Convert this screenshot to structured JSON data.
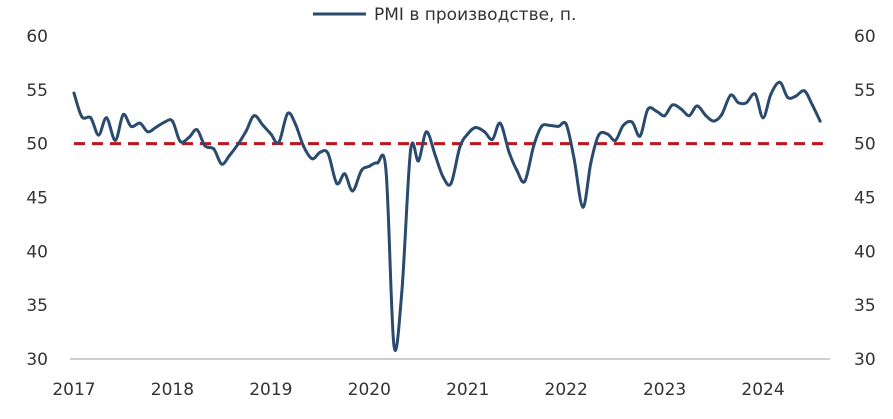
{
  "chart_data": {
    "type": "line",
    "legend": {
      "placement": "top-center",
      "label": "PMI в производстве, п."
    },
    "x_ticks": [
      "2017",
      "2018",
      "2019",
      "2020",
      "2021",
      "2022",
      "2023",
      "2024"
    ],
    "y_ticks": [
      "60",
      "55",
      "50",
      "45",
      "40",
      "35",
      "30"
    ],
    "ylim": [
      30,
      60
    ],
    "xlim": [
      2017.0,
      2024.67
    ],
    "grid": false,
    "colors": {
      "series": "#2b4b6e",
      "reference": "#c0141c",
      "axis": "#bfbfbf",
      "text": "#333333"
    },
    "reference_line": {
      "value": 50,
      "style": "dashed"
    },
    "series": [
      {
        "name": "PMI в производстве, п.",
        "x": [
          2017.0,
          2017.08,
          2017.17,
          2017.25,
          2017.33,
          2017.42,
          2017.5,
          2017.58,
          2017.67,
          2017.75,
          2017.83,
          2017.92,
          2018.0,
          2018.08,
          2018.17,
          2018.25,
          2018.33,
          2018.42,
          2018.5,
          2018.58,
          2018.67,
          2018.75,
          2018.83,
          2018.92,
          2019.0,
          2019.08,
          2019.17,
          2019.25,
          2019.33,
          2019.42,
          2019.5,
          2019.58,
          2019.67,
          2019.75,
          2019.83,
          2019.92,
          2020.0,
          2020.08,
          2020.17,
          2020.25,
          2020.33,
          2020.42,
          2020.5,
          2020.58,
          2020.67,
          2020.75,
          2020.83,
          2020.92,
          2021.0,
          2021.08,
          2021.17,
          2021.25,
          2021.33,
          2021.42,
          2021.5,
          2021.58,
          2021.67,
          2021.75,
          2021.83,
          2021.92,
          2022.0,
          2022.08,
          2022.17,
          2022.25,
          2022.33,
          2022.42,
          2022.5,
          2022.58,
          2022.67,
          2022.75,
          2022.83,
          2022.92,
          2023.0,
          2023.08,
          2023.17,
          2023.25,
          2023.33,
          2023.42,
          2023.5,
          2023.58,
          2023.67,
          2023.75,
          2023.83,
          2023.92,
          2024.0,
          2024.08,
          2024.17,
          2024.25,
          2024.33,
          2024.42,
          2024.5,
          2024.58
        ],
        "values": [
          54.7,
          52.5,
          52.4,
          50.8,
          52.4,
          50.3,
          52.7,
          51.6,
          51.9,
          51.1,
          51.5,
          52.0,
          52.1,
          50.2,
          50.6,
          51.3,
          49.8,
          49.5,
          48.1,
          48.9,
          50.0,
          51.2,
          52.6,
          51.7,
          50.9,
          50.1,
          52.8,
          51.8,
          49.8,
          48.6,
          49.2,
          49.1,
          46.3,
          47.2,
          45.6,
          47.5,
          47.9,
          48.2,
          47.5,
          31.3,
          36.2,
          49.4,
          48.4,
          51.1,
          48.9,
          46.9,
          46.3,
          49.7,
          50.9,
          51.5,
          51.1,
          50.4,
          51.9,
          49.2,
          47.5,
          46.5,
          49.8,
          51.6,
          51.7,
          51.6,
          51.8,
          48.6,
          44.1,
          48.2,
          50.8,
          50.9,
          50.3,
          51.7,
          52.0,
          50.7,
          53.2,
          53.0,
          52.6,
          53.6,
          53.2,
          52.6,
          53.5,
          52.6,
          52.1,
          52.7,
          54.5,
          53.8,
          53.8,
          54.6,
          52.4,
          54.6,
          55.7,
          54.3,
          54.4,
          54.9,
          53.6,
          52.1
        ]
      }
    ]
  }
}
